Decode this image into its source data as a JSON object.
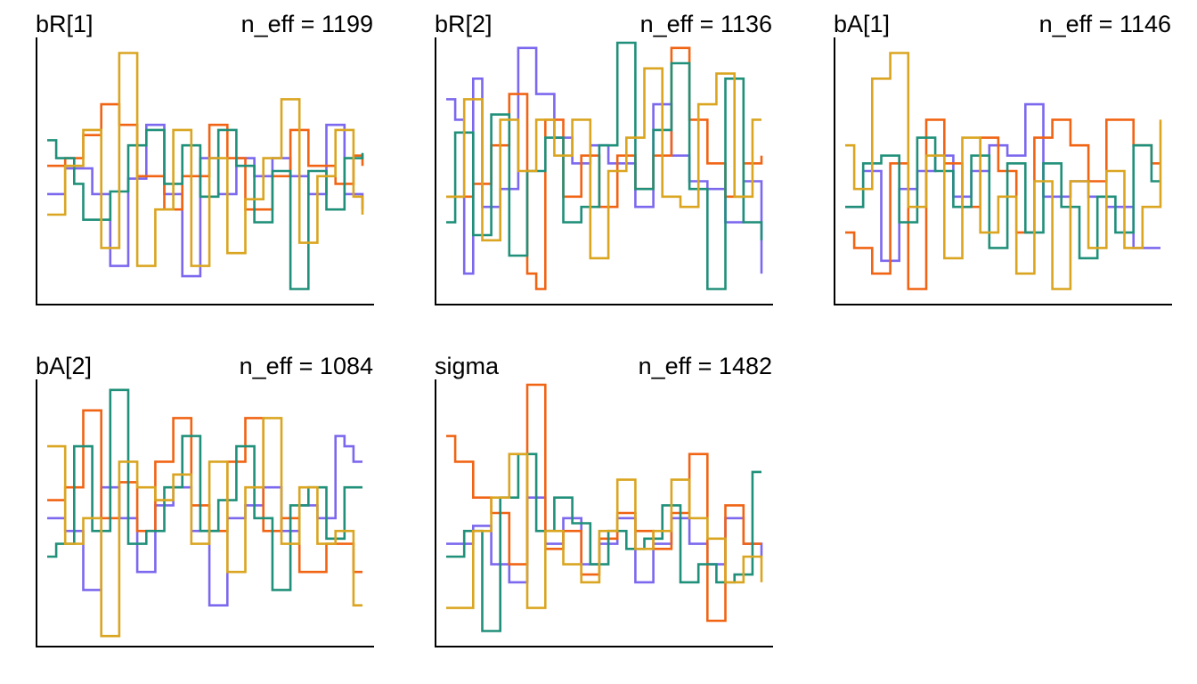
{
  "colors": [
    "#7b68ee",
    "#f06414",
    "#20907a",
    "#daa520"
  ],
  "chart_data": [
    {
      "type": "line",
      "title": "bR[1]",
      "neff_label": "n_eff = 1199",
      "ylim": [
        0,
        1
      ],
      "x": [
        0,
        1,
        2,
        3,
        4,
        5,
        6,
        7,
        8,
        9,
        10,
        11,
        12,
        13,
        14,
        15,
        16,
        17,
        18,
        19,
        20,
        21,
        22,
        23,
        24,
        25,
        26,
        27,
        28,
        29,
        30,
        31,
        32,
        33,
        34,
        35
      ],
      "series": [
        {
          "values": [
            0.41,
            0.41,
            0.51,
            0.51,
            0.51,
            0.41,
            0.41,
            0.13,
            0.13,
            0.47,
            0.47,
            0.68,
            0.68,
            0.41,
            0.41,
            0.09,
            0.09,
            0.55,
            0.55,
            0.41,
            0.41,
            0.55,
            0.55,
            0.48,
            0.48,
            0.55,
            0.55,
            0.48,
            0.48,
            0.41,
            0.41,
            0.68,
            0.68,
            0.41,
            0.41,
            0.35
          ]
        },
        {
          "values": [
            0.52,
            0.52,
            0.55,
            0.55,
            0.64,
            0.64,
            0.76,
            0.76,
            0.68,
            0.68,
            0.48,
            0.48,
            0.48,
            0.35,
            0.35,
            0.48,
            0.48,
            0.48,
            0.68,
            0.68,
            0.55,
            0.55,
            0.35,
            0.35,
            0.35,
            0.48,
            0.48,
            0.66,
            0.66,
            0.52,
            0.52,
            0.52,
            0.45,
            0.45,
            0.56,
            0.52
          ]
        },
        {
          "values": [
            0.62,
            0.55,
            0.55,
            0.45,
            0.31,
            0.31,
            0.31,
            0.42,
            0.42,
            0.6,
            0.6,
            0.66,
            0.66,
            0.45,
            0.45,
            0.6,
            0.6,
            0.4,
            0.4,
            0.66,
            0.66,
            0.52,
            0.52,
            0.3,
            0.3,
            0.5,
            0.5,
            0.04,
            0.04,
            0.5,
            0.5,
            0.35,
            0.35,
            0.55,
            0.55,
            0.57
          ]
        },
        {
          "values": [
            0.33,
            0.33,
            0.52,
            0.52,
            0.66,
            0.66,
            0.2,
            0.2,
            0.96,
            0.96,
            0.13,
            0.13,
            0.35,
            0.35,
            0.66,
            0.66,
            0.13,
            0.13,
            0.55,
            0.55,
            0.18,
            0.18,
            0.39,
            0.39,
            0.55,
            0.55,
            0.78,
            0.78,
            0.22,
            0.22,
            0.48,
            0.48,
            0.66,
            0.66,
            0.4,
            0.33
          ]
        }
      ]
    },
    {
      "type": "line",
      "title": "bR[2]",
      "neff_label": "n_eff = 1136",
      "ylim": [
        0,
        1
      ],
      "x": [
        0,
        1,
        2,
        3,
        4,
        5,
        6,
        7,
        8,
        9,
        10,
        11,
        12,
        13,
        14,
        15,
        16,
        17,
        18,
        19,
        20,
        21,
        22,
        23,
        24,
        25,
        26,
        27,
        28,
        29,
        30,
        31,
        32,
        33,
        34,
        35
      ],
      "series": [
        {
          "values": [
            0.78,
            0.7,
            0.1,
            0.86,
            0.36,
            0.36,
            0.43,
            0.43,
            0.98,
            0.98,
            0.8,
            0.8,
            0.63,
            0.63,
            0.53,
            0.53,
            0.6,
            0.6,
            0.53,
            0.53,
            0.53,
            0.36,
            0.36,
            0.76,
            0.76,
            0.56,
            0.56,
            0.46,
            0.46,
            0.43,
            0.43,
            0.3,
            0.3,
            0.46,
            0.46,
            0.1
          ]
        },
        {
          "values": [
            0.4,
            0.4,
            0.4,
            0.45,
            0.45,
            0.6,
            0.6,
            0.8,
            0.8,
            0.1,
            0.04,
            0.7,
            0.7,
            0.4,
            0.4,
            0.56,
            0.56,
            0.36,
            0.36,
            0.56,
            0.56,
            0.43,
            0.43,
            0.56,
            0.56,
            0.98,
            0.98,
            0.7,
            0.7,
            0.53,
            0.53,
            0.4,
            0.4,
            0.53,
            0.53,
            0.56
          ]
        },
        {
          "values": [
            0.3,
            0.65,
            0.65,
            0.25,
            0.25,
            0.72,
            0.72,
            0.17,
            0.17,
            0.5,
            0.5,
            0.63,
            0.63,
            0.3,
            0.3,
            0.36,
            0.36,
            0.6,
            0.6,
            1.0,
            1.0,
            0.43,
            0.43,
            0.66,
            0.66,
            0.92,
            0.92,
            0.43,
            0.43,
            0.04,
            0.04,
            0.86,
            0.86,
            0.3,
            0.3,
            0.23
          ]
        },
        {
          "values": [
            0.4,
            0.4,
            0.78,
            0.78,
            0.23,
            0.23,
            0.7,
            0.7,
            0.5,
            0.5,
            0.7,
            0.7,
            0.56,
            0.56,
            0.7,
            0.7,
            0.16,
            0.16,
            0.5,
            0.5,
            0.63,
            0.63,
            0.9,
            0.9,
            0.4,
            0.4,
            0.36,
            0.36,
            0.76,
            0.76,
            0.88,
            0.88,
            0.4,
            0.4,
            0.7,
            0.7
          ]
        }
      ]
    },
    {
      "type": "line",
      "title": "bA[1]",
      "neff_label": "n_eff = 1146",
      "ylim": [
        0,
        1
      ],
      "x": [
        0,
        1,
        2,
        3,
        4,
        5,
        6,
        7,
        8,
        9,
        10,
        11,
        12,
        13,
        14,
        15,
        16,
        17,
        18,
        19,
        20,
        21,
        22,
        23,
        24,
        25,
        26,
        27,
        28,
        29,
        30,
        31,
        32,
        33,
        34,
        35
      ],
      "series": [
        {
          "values": [
            0.36,
            0.36,
            0.5,
            0.5,
            0.15,
            0.15,
            0.43,
            0.43,
            0.5,
            0.5,
            0.56,
            0.56,
            0.4,
            0.4,
            0.5,
            0.5,
            0.6,
            0.6,
            0.56,
            0.56,
            0.76,
            0.76,
            0.4,
            0.4,
            0.4,
            0.46,
            0.46,
            0.4,
            0.4,
            0.36,
            0.36,
            0.36,
            0.2,
            0.2,
            0.2,
            0.2
          ]
        },
        {
          "values": [
            0.26,
            0.2,
            0.2,
            0.1,
            0.1,
            0.53,
            0.53,
            0.04,
            0.04,
            0.7,
            0.7,
            0.53,
            0.53,
            0.36,
            0.36,
            0.63,
            0.63,
            0.5,
            0.5,
            0.26,
            0.26,
            0.63,
            0.63,
            0.7,
            0.7,
            0.6,
            0.6,
            0.46,
            0.46,
            0.7,
            0.7,
            0.7,
            0.6,
            0.6,
            0.53,
            0.53
          ]
        },
        {
          "values": [
            0.36,
            0.36,
            0.53,
            0.53,
            0.56,
            0.56,
            0.3,
            0.3,
            0.63,
            0.63,
            0.5,
            0.5,
            0.36,
            0.36,
            0.56,
            0.56,
            0.2,
            0.2,
            0.53,
            0.53,
            0.26,
            0.26,
            0.53,
            0.53,
            0.36,
            0.36,
            0.16,
            0.16,
            0.4,
            0.4,
            0.26,
            0.26,
            0.6,
            0.6,
            0.46,
            0.46
          ]
        },
        {
          "values": [
            0.6,
            0.43,
            0.43,
            0.86,
            0.86,
            0.96,
            0.96,
            0.36,
            0.36,
            0.56,
            0.56,
            0.16,
            0.16,
            0.63,
            0.63,
            0.26,
            0.26,
            0.4,
            0.4,
            0.1,
            0.1,
            0.46,
            0.46,
            0.04,
            0.04,
            0.46,
            0.46,
            0.2,
            0.2,
            0.5,
            0.5,
            0.2,
            0.2,
            0.36,
            0.36,
            0.7
          ]
        }
      ]
    },
    {
      "type": "line",
      "title": "bA[2]",
      "neff_label": "n_eff = 1084",
      "ylim": [
        0,
        1
      ],
      "x": [
        0,
        1,
        2,
        3,
        4,
        5,
        6,
        7,
        8,
        9,
        10,
        11,
        12,
        13,
        14,
        15,
        16,
        17,
        18,
        19,
        20,
        21,
        22,
        23,
        24,
        25,
        26,
        27,
        28,
        29,
        30,
        31,
        32,
        33,
        34,
        35
      ],
      "series": [
        {
          "values": [
            0.48,
            0.48,
            0.43,
            0.43,
            0.2,
            0.2,
            0.6,
            0.6,
            0.48,
            0.48,
            0.27,
            0.27,
            0.53,
            0.53,
            0.6,
            0.6,
            0.43,
            0.43,
            0.14,
            0.14,
            0.48,
            0.48,
            0.53,
            0.53,
            0.6,
            0.6,
            0.43,
            0.43,
            0.53,
            0.53,
            0.48,
            0.48,
            0.8,
            0.76,
            0.7,
            0.7
          ]
        },
        {
          "values": [
            0.55,
            0.55,
            0.6,
            0.6,
            0.9,
            0.9,
            0.48,
            0.48,
            0.62,
            0.62,
            0.43,
            0.43,
            0.7,
            0.7,
            0.87,
            0.87,
            0.53,
            0.53,
            0.43,
            0.43,
            0.7,
            0.7,
            0.87,
            0.87,
            0.43,
            0.43,
            0.48,
            0.48,
            0.27,
            0.27,
            0.27,
            0.38,
            0.38,
            0.38,
            0.27,
            0.27
          ]
        },
        {
          "values": [
            0.33,
            0.38,
            0.38,
            0.76,
            0.76,
            0.43,
            0.43,
            0.98,
            0.98,
            0.38,
            0.38,
            0.43,
            0.43,
            0.6,
            0.6,
            0.8,
            0.8,
            0.43,
            0.43,
            0.55,
            0.55,
            0.76,
            0.76,
            0.48,
            0.48,
            0.2,
            0.2,
            0.53,
            0.53,
            0.6,
            0.6,
            0.4,
            0.4,
            0.6,
            0.6,
            0.6
          ]
        },
        {
          "values": [
            0.76,
            0.76,
            0.38,
            0.38,
            0.48,
            0.48,
            0.02,
            0.02,
            0.7,
            0.7,
            0.6,
            0.6,
            0.55,
            0.55,
            0.65,
            0.65,
            0.38,
            0.38,
            0.7,
            0.7,
            0.27,
            0.27,
            0.6,
            0.6,
            0.87,
            0.87,
            0.38,
            0.38,
            0.6,
            0.6,
            0.38,
            0.38,
            0.43,
            0.43,
            0.14,
            0.14
          ]
        }
      ]
    },
    {
      "type": "line",
      "title": "sigma",
      "neff_label": "n_eff = 1482",
      "ylim": [
        0,
        1
      ],
      "x": [
        0,
        1,
        2,
        3,
        4,
        5,
        6,
        7,
        8,
        9,
        10,
        11,
        12,
        13,
        14,
        15,
        16,
        17,
        18,
        19,
        20,
        21,
        22,
        23,
        24,
        25,
        26,
        27,
        28,
        29,
        30,
        31,
        32,
        33,
        34,
        35
      ],
      "series": [
        {
          "values": [
            0.38,
            0.38,
            0.38,
            0.45,
            0.45,
            0.3,
            0.3,
            0.23,
            0.23,
            0.56,
            0.56,
            0.38,
            0.38,
            0.48,
            0.48,
            0.3,
            0.3,
            0.38,
            0.38,
            0.48,
            0.48,
            0.23,
            0.23,
            0.38,
            0.38,
            0.48,
            0.48,
            0.38,
            0.38,
            0.3,
            0.3,
            0.48,
            0.48,
            0.38,
            0.38,
            0.33
          ]
        },
        {
          "values": [
            0.8,
            0.7,
            0.7,
            0.56,
            0.56,
            0.5,
            0.5,
            0.3,
            0.3,
            1.0,
            1.0,
            0.36,
            0.36,
            0.43,
            0.43,
            0.26,
            0.26,
            0.4,
            0.4,
            0.5,
            0.5,
            0.43,
            0.43,
            0.36,
            0.36,
            0.5,
            0.5,
            0.73,
            0.73,
            0.08,
            0.08,
            0.53,
            0.53,
            0.38,
            0.38,
            0.38
          ]
        },
        {
          "values": [
            0.33,
            0.33,
            0.43,
            0.43,
            0.04,
            0.04,
            0.56,
            0.56,
            0.73,
            0.73,
            0.43,
            0.43,
            0.56,
            0.56,
            0.46,
            0.46,
            0.3,
            0.3,
            0.43,
            0.43,
            0.36,
            0.36,
            0.4,
            0.4,
            0.53,
            0.53,
            0.23,
            0.23,
            0.3,
            0.3,
            0.23,
            0.23,
            0.26,
            0.26,
            0.66,
            0.66
          ]
        },
        {
          "values": [
            0.13,
            0.13,
            0.13,
            0.43,
            0.43,
            0.56,
            0.56,
            0.73,
            0.73,
            0.13,
            0.13,
            0.43,
            0.43,
            0.3,
            0.3,
            0.23,
            0.23,
            0.43,
            0.43,
            0.63,
            0.63,
            0.36,
            0.36,
            0.43,
            0.43,
            0.63,
            0.63,
            0.48,
            0.48,
            0.4,
            0.4,
            0.23,
            0.23,
            0.33,
            0.33,
            0.23
          ]
        }
      ]
    }
  ]
}
